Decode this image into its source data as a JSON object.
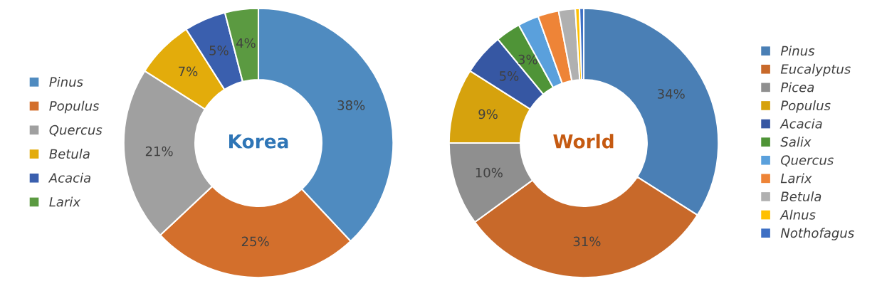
{
  "chart_data": [
    {
      "type": "donut",
      "title": "Korea",
      "legend": "left",
      "categories": [
        "Pinus",
        "Populus",
        "Quercus",
        "Betula",
        "Acacia",
        "Larix"
      ],
      "values": [
        38,
        25,
        21,
        7,
        5,
        4
      ],
      "colors": [
        "#4f8bc0",
        "#d36f2c",
        "#a0a0a0",
        "#e3ac0b",
        "#3a5fae",
        "#5b9a41"
      ],
      "value_labels": [
        "38%",
        "25%",
        "21%",
        "7%",
        "5%",
        "4%"
      ]
    },
    {
      "type": "donut",
      "title": "World",
      "legend": "right",
      "categories": [
        "Pinus",
        "Eucalyptus",
        "Picea",
        "Populus",
        "Acacia",
        "Salix",
        "Quercus",
        "Larix",
        "Betula",
        "Alnus",
        "Nothofagus"
      ],
      "values": [
        34,
        31,
        10,
        9,
        5,
        3,
        2.5,
        2.5,
        2,
        0.5,
        0.5
      ],
      "value_labels": [
        "34%",
        "31%",
        "10%",
        "9%",
        "5%",
        "3%",
        null,
        null,
        null,
        null,
        null
      ],
      "colors": [
        "#4a7fb5",
        "#c8692a",
        "#8f8f8f",
        "#d6a20d",
        "#3657a3",
        "#4f9437",
        "#5aa0dc",
        "#ee8437",
        "#b0b0b0",
        "#ffc000",
        "#3d6fc4"
      ]
    }
  ]
}
